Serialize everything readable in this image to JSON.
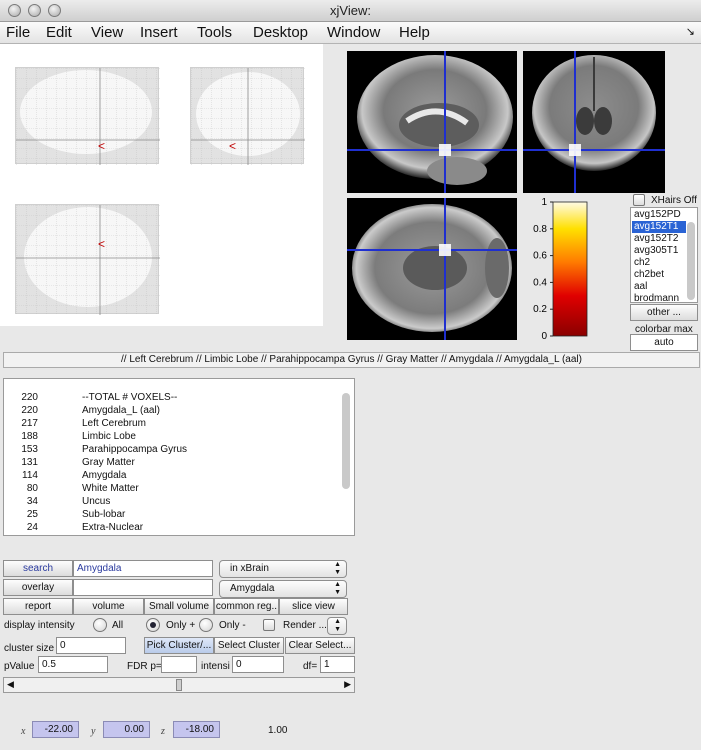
{
  "window": {
    "title": "xjView:"
  },
  "menu": [
    "File",
    "Edit",
    "View",
    "Insert",
    "Tools",
    "Desktop",
    "Window",
    "Help"
  ],
  "colors": {
    "selection": "#2a63d4",
    "crosshair": "#1f2fd0",
    "marker": "#c00000",
    "coord_field": "#c5c5ee"
  },
  "glass_brain": {
    "marker_glyph": "<"
  },
  "colorbar": {
    "ticks": [
      "1",
      "0.8",
      "0.6",
      "0.4",
      "0.2",
      "0"
    ],
    "colormap": "hot",
    "min": 0,
    "max": 1
  },
  "xhairs": {
    "label": "XHairs Off",
    "checked": false
  },
  "templates": {
    "items": [
      "avg152PD",
      "avg152T1",
      "avg152T2",
      "avg305T1",
      "ch2",
      "ch2bet",
      "aal",
      "brodmann"
    ],
    "selected": "avg152T1",
    "other_button": "other ...",
    "colorbar_max_label": "colorbar max",
    "colorbar_max_value": "auto"
  },
  "location_label": "// Left Cerebrum // Limbic Lobe // Parahippocampa Gyrus // Gray Matter // Amygdala // Amygdala_L (aal)",
  "voxel_table": [
    {
      "count": "220",
      "label": "--TOTAL # VOXELS--"
    },
    {
      "count": "220",
      "label": "Amygdala_L (aal)"
    },
    {
      "count": "217",
      "label": "Left Cerebrum"
    },
    {
      "count": "188",
      "label": "Limbic Lobe"
    },
    {
      "count": "153",
      "label": "Parahippocampa Gyrus"
    },
    {
      "count": "131",
      "label": "Gray Matter"
    },
    {
      "count": "114",
      "label": "Amygdala"
    },
    {
      "count": "80",
      "label": "White Matter"
    },
    {
      "count": "34",
      "label": "Uncus"
    },
    {
      "count": "25",
      "label": "Sub-lobar"
    },
    {
      "count": "24",
      "label": "Extra-Nuclear"
    }
  ],
  "controls": {
    "search_button": "search",
    "search_value": "Amygdala",
    "search_scope": "in xBrain",
    "overlay_button": "overlay",
    "overlay_value": "",
    "overlay_popup": "Amygdala",
    "report_button": "report",
    "volume_button": "volume",
    "small_volume_button": "Small volume",
    "common_region_button": "common reg..",
    "slice_view_button": "slice view",
    "display_intensity_label": "display intensity",
    "all_label": "All",
    "only_pos_label": "Only +",
    "only_neg_label": "Only -",
    "render_label": "Render ...",
    "display_mode": "Only +",
    "cluster_size_label": "cluster size",
    "cluster_size_value": "0",
    "pick_cluster_button": "Pick Cluster/...",
    "select_cluster_button": "Select Cluster",
    "clear_select_button": "Clear Select...",
    "pvalue_label": "pValue",
    "pvalue_value": "0.5",
    "fdr_label": "FDR p=",
    "fdr_value": "",
    "intensity_label": "intensi",
    "intensity_value": "0",
    "df_label": "df=",
    "df_value": "1",
    "slider_position": 0.5
  },
  "coords": {
    "x_label": "x",
    "x": "-22.00",
    "y_label": "y",
    "y": "0.00",
    "z_label": "z",
    "z": "-18.00",
    "intensity_readout": "1.00"
  }
}
